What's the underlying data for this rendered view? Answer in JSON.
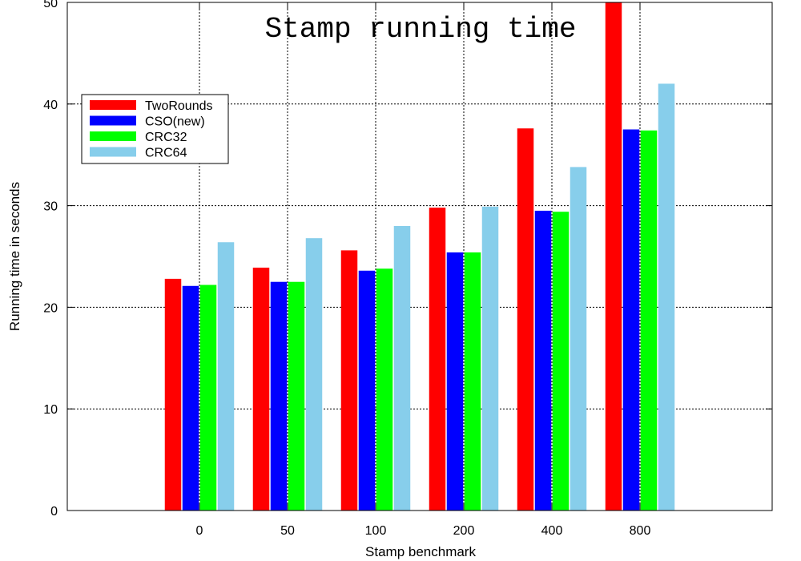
{
  "chart_data": {
    "type": "bar",
    "title": "Stamp running time",
    "xlabel": "Stamp benchmark",
    "ylabel": "Running time in seconds",
    "categories": [
      "0",
      "50",
      "100",
      "200",
      "400",
      "800"
    ],
    "ylim": [
      0,
      50
    ],
    "yticks": [
      0,
      10,
      20,
      30,
      40,
      50
    ],
    "grid": true,
    "legend_position": "top-left",
    "series": [
      {
        "name": "TwoRounds",
        "color": "#ff0000",
        "values": [
          22.8,
          23.9,
          25.6,
          29.8,
          37.6,
          50.0
        ]
      },
      {
        "name": "CSO(new)",
        "color": "#0000ff",
        "values": [
          22.1,
          22.5,
          23.6,
          25.4,
          29.5,
          37.5
        ]
      },
      {
        "name": "CRC32",
        "color": "#00ff00",
        "values": [
          22.2,
          22.5,
          23.8,
          25.4,
          29.4,
          37.4
        ]
      },
      {
        "name": "CRC64",
        "color": "#87ceeb",
        "values": [
          26.4,
          26.8,
          28.0,
          29.9,
          33.8,
          42.0
        ]
      }
    ]
  }
}
